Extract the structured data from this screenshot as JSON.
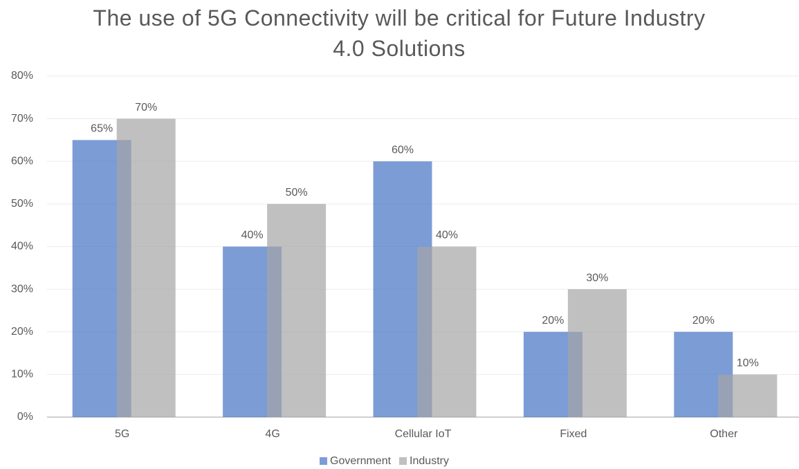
{
  "chart_data": {
    "type": "bar",
    "title": "The use of 5G Connectivity will be critical for Future Industry 4.0 Solutions",
    "categories": [
      "5G",
      "4G",
      "Cellular IoT",
      "Fixed",
      "Other"
    ],
    "series": [
      {
        "name": "Government",
        "color": "#4472c4",
        "values": [
          65,
          40,
          60,
          20,
          20
        ],
        "value_labels": [
          "65%",
          "40%",
          "60%",
          "20%",
          "20%"
        ]
      },
      {
        "name": "Industry",
        "color": "#a5a5a5",
        "values": [
          70,
          50,
          40,
          30,
          10
        ],
        "value_labels": [
          "70%",
          "50%",
          "40%",
          "30%",
          "10%"
        ]
      }
    ],
    "ylim": [
      0,
      80
    ],
    "yticks": [
      {
        "value": 0,
        "label": "0%"
      },
      {
        "value": 10,
        "label": "10%"
      },
      {
        "value": 20,
        "label": "20%"
      },
      {
        "value": 30,
        "label": "30%"
      },
      {
        "value": 40,
        "label": "40%"
      },
      {
        "value": 50,
        "label": "50%"
      },
      {
        "value": 60,
        "label": "60%"
      },
      {
        "value": 70,
        "label": "70%"
      },
      {
        "value": 80,
        "label": "80%"
      }
    ],
    "grid": true,
    "legend": "bottom"
  }
}
